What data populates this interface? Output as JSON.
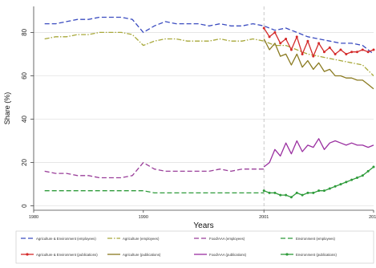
{
  "chart_data": {
    "type": "line",
    "xlabel": "Years",
    "ylabel": "Share (%)",
    "xlim": [
      1980,
      2011
    ],
    "ylim": [
      -2,
      92
    ],
    "yticks": [
      0,
      20,
      40,
      60,
      80
    ],
    "xticks": [
      1980,
      1990,
      2001,
      2011
    ],
    "reference_line_x": 2001,
    "grid": true,
    "legend_position": "bottom",
    "series": [
      {
        "name": "Agriculture & Environment (employees)",
        "color": "#3b4cc0",
        "dash": "dash",
        "marker": false,
        "x": [
          1981,
          1982,
          1983,
          1984,
          1985,
          1986,
          1987,
          1988,
          1989,
          1990,
          1991,
          1992,
          1993,
          1994,
          1995,
          1996,
          1997,
          1998,
          1999,
          2000,
          2001,
          2002,
          2003,
          2004,
          2005,
          2006,
          2007,
          2008,
          2009,
          2010,
          2011
        ],
        "y": [
          84,
          84,
          85,
          86,
          86,
          87,
          87,
          87,
          86,
          80,
          83,
          85,
          84,
          84,
          84,
          83,
          84,
          83,
          83,
          84,
          83,
          81,
          82,
          80,
          78,
          77,
          76,
          75,
          75,
          74,
          70
        ]
      },
      {
        "name": "Agriculture (employees)",
        "color": "#a8a83a",
        "dash": "dashdot",
        "marker": false,
        "x": [
          1981,
          1982,
          1983,
          1984,
          1985,
          1986,
          1987,
          1988,
          1989,
          1990,
          1991,
          1992,
          1993,
          1994,
          1995,
          1996,
          1997,
          1998,
          1999,
          2000,
          2001,
          2002,
          2003,
          2004,
          2005,
          2006,
          2007,
          2008,
          2009,
          2010,
          2011
        ],
        "y": [
          77,
          78,
          78,
          79,
          79,
          80,
          80,
          80,
          79,
          74,
          76,
          77,
          77,
          76,
          76,
          76,
          77,
          76,
          76,
          77,
          76,
          74,
          74,
          72,
          70,
          69,
          68,
          67,
          66,
          65,
          60
        ]
      },
      {
        "name": "Food/AAA (employees)",
        "color": "#9a3f9a",
        "dash": "dash",
        "marker": false,
        "x": [
          1981,
          1982,
          1983,
          1984,
          1985,
          1986,
          1987,
          1988,
          1989,
          1990,
          1991,
          1992,
          1993,
          1994,
          1995,
          1996,
          1997,
          1998,
          1999,
          2000,
          2001
        ],
        "y": [
          16,
          15,
          15,
          14,
          14,
          13,
          13,
          13,
          14,
          20,
          17,
          16,
          16,
          16,
          16,
          16,
          17,
          16,
          17,
          17,
          17
        ]
      },
      {
        "name": "Environment (employees)",
        "color": "#2e9b3a",
        "dash": "dash",
        "marker": false,
        "x": [
          1981,
          1982,
          1983,
          1984,
          1985,
          1986,
          1987,
          1988,
          1989,
          1990,
          1991,
          1992,
          1993,
          1994,
          1995,
          1996,
          1997,
          1998,
          1999,
          2000,
          2001
        ],
        "y": [
          7,
          7,
          7,
          7,
          7,
          7,
          7,
          7,
          7,
          7,
          6,
          6,
          6,
          6,
          6,
          6,
          6,
          6,
          6,
          6,
          6
        ]
      },
      {
        "name": "Agriculture & Environment (publications)",
        "color": "#d42a2a",
        "dash": "solid",
        "marker": true,
        "x": [
          2001,
          2001.5,
          2002,
          2002.5,
          2003,
          2003.5,
          2004,
          2004.5,
          2005,
          2005.5,
          2006,
          2006.5,
          2007,
          2007.5,
          2008,
          2008.5,
          2009,
          2009.5,
          2010,
          2010.5,
          2011
        ],
        "y": [
          82,
          78,
          80,
          75,
          77,
          72,
          78,
          70,
          76,
          69,
          75,
          71,
          73,
          70,
          72,
          70,
          71,
          71,
          72,
          71,
          72
        ]
      },
      {
        "name": "Agriculture (publications)",
        "color": "#8a7a20",
        "dash": "solid",
        "marker": false,
        "x": [
          2001,
          2001.5,
          2002,
          2002.5,
          2003,
          2003.5,
          2004,
          2004.5,
          2005,
          2005.5,
          2006,
          2006.5,
          2007,
          2007.5,
          2008,
          2008.5,
          2009,
          2009.5,
          2010,
          2010.5,
          2011
        ],
        "y": [
          77,
          72,
          75,
          69,
          70,
          65,
          70,
          64,
          67,
          63,
          66,
          62,
          63,
          60,
          60,
          59,
          59,
          58,
          58,
          56,
          54
        ]
      },
      {
        "name": "Food/AAA (publications)",
        "color": "#9a2fa0",
        "dash": "solid",
        "marker": false,
        "x": [
          2001,
          2001.5,
          2002,
          2002.5,
          2003,
          2003.5,
          2004,
          2004.5,
          2005,
          2005.5,
          2006,
          2006.5,
          2007,
          2007.5,
          2008,
          2008.5,
          2009,
          2009.5,
          2010,
          2010.5,
          2011
        ],
        "y": [
          18,
          20,
          26,
          23,
          29,
          24,
          30,
          25,
          28,
          27,
          31,
          26,
          29,
          30,
          29,
          28,
          29,
          28,
          28,
          27,
          28
        ]
      },
      {
        "name": "Environment (publications)",
        "color": "#2e9b3a",
        "dash": "solid",
        "marker": true,
        "x": [
          2001,
          2001.5,
          2002,
          2002.5,
          2003,
          2003.5,
          2004,
          2004.5,
          2005,
          2005.5,
          2006,
          2006.5,
          2007,
          2007.5,
          2008,
          2008.5,
          2009,
          2009.5,
          2010,
          2010.5,
          2011
        ],
        "y": [
          7,
          6,
          6,
          5,
          5,
          4,
          6,
          5,
          6,
          6,
          7,
          7,
          8,
          9,
          10,
          11,
          12,
          13,
          14,
          16,
          18
        ]
      }
    ]
  }
}
